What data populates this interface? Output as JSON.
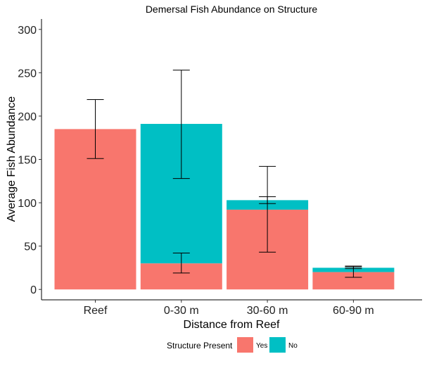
{
  "chart_data": {
    "type": "bar",
    "stacked": true,
    "title": "Demersal Fish Abundance on Structure",
    "xlabel": "Distance from Reef",
    "ylabel": "Average Fish Abundance",
    "categories": [
      "Reef",
      "0-30 m",
      "30-60 m",
      "60-90 m"
    ],
    "ylim": [
      -12,
      312
    ],
    "yticks": [
      0,
      50,
      100,
      150,
      200,
      250,
      300
    ],
    "grid": false,
    "series": [
      {
        "name": "Yes",
        "color": "#F8766D",
        "values": [
          185,
          30,
          92,
          20
        ],
        "error_low": [
          151,
          19,
          43,
          14
        ],
        "error_high": [
          219,
          42,
          142,
          27
        ]
      },
      {
        "name": "No",
        "color": "#00BFC4",
        "values": [
          null,
          161,
          11,
          5
        ],
        "stacked_total": [
          null,
          191,
          103,
          25
        ],
        "error_low": [
          null,
          128,
          99,
          24
        ],
        "error_high": [
          null,
          253,
          107,
          26
        ]
      }
    ],
    "legend": {
      "title": "Structure Present",
      "position": "bottom",
      "items": [
        "Yes",
        "No"
      ]
    }
  }
}
